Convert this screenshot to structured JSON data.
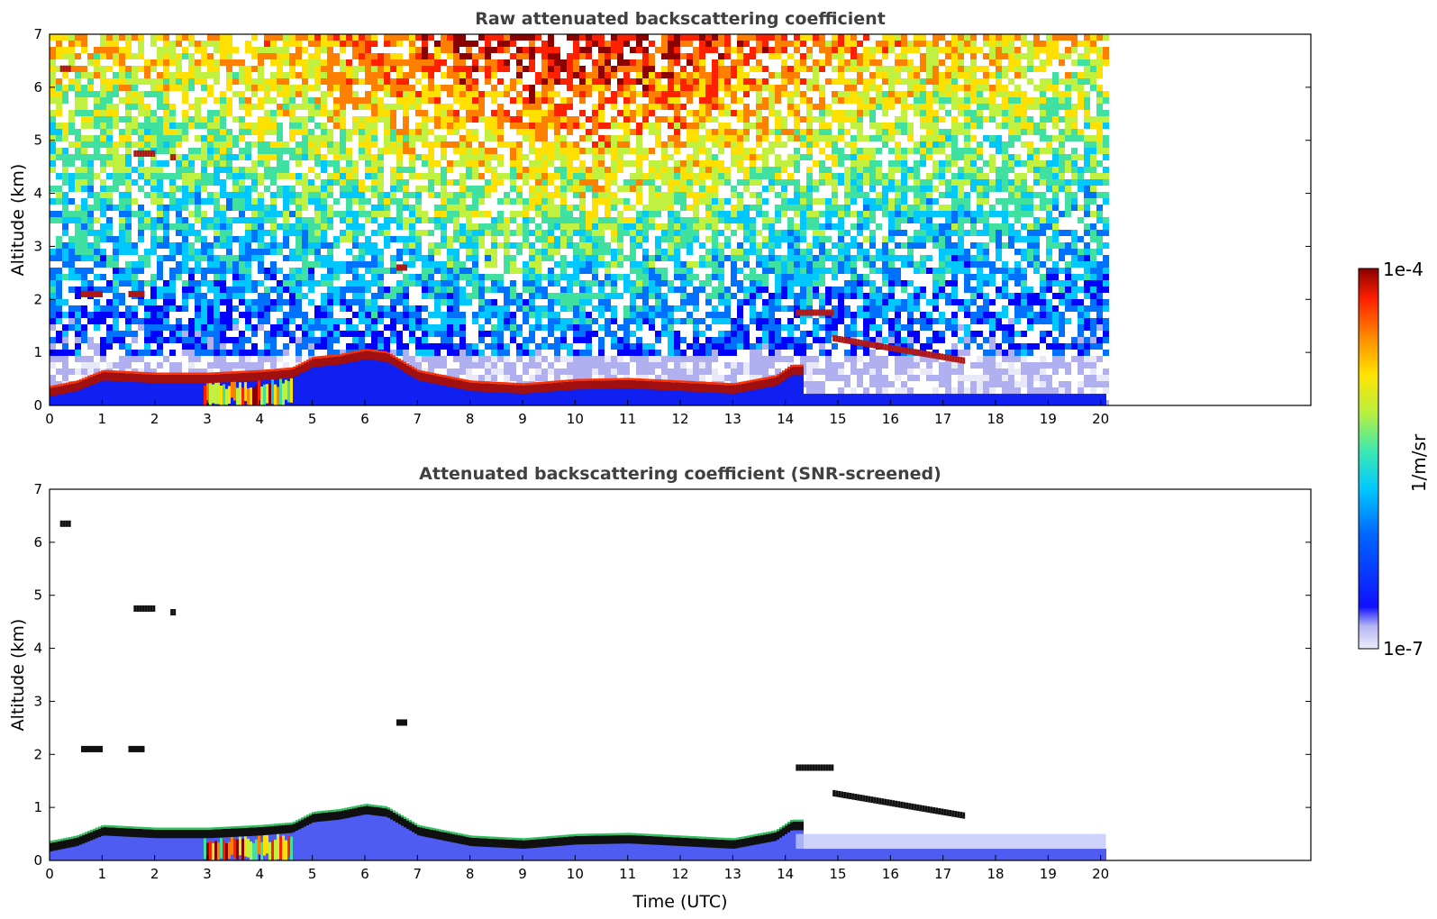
{
  "chart_data": [
    {
      "type": "heatmap",
      "title": "Raw attenuated backscattering coefficient",
      "xlabel": "",
      "ylabel": "Altitude (km)",
      "xlim": [
        0,
        24
      ],
      "ylim": [
        0,
        7
      ],
      "x_ticks": [
        "0",
        "1",
        "2",
        "3",
        "4",
        "5",
        "6",
        "7",
        "8",
        "9",
        "10",
        "11",
        "12",
        "13",
        "14",
        "15",
        "16",
        "17",
        "18",
        "19",
        "20"
      ],
      "y_ticks": [
        "0",
        "1",
        "2",
        "3",
        "4",
        "5",
        "6",
        "7"
      ],
      "data_end_time": 20.1,
      "layer_top_km": [
        [
          0,
          0.25
        ],
        [
          0.5,
          0.35
        ],
        [
          1,
          0.55
        ],
        [
          2,
          0.5
        ],
        [
          3,
          0.5
        ],
        [
          4,
          0.55
        ],
        [
          4.6,
          0.6
        ],
        [
          5,
          0.8
        ],
        [
          5.5,
          0.85
        ],
        [
          6,
          0.95
        ],
        [
          6.4,
          0.9
        ],
        [
          7,
          0.55
        ],
        [
          8,
          0.35
        ],
        [
          9,
          0.3
        ],
        [
          10,
          0.38
        ],
        [
          11,
          0.4
        ],
        [
          12,
          0.35
        ],
        [
          13,
          0.3
        ],
        [
          13.8,
          0.45
        ],
        [
          14.1,
          0.65
        ]
      ],
      "elevated_layers": [
        {
          "t0": 0.2,
          "t1": 0.4,
          "z": 6.35
        },
        {
          "t0": 1.6,
          "t1": 2.0,
          "z": 4.75
        },
        {
          "t0": 2.3,
          "t1": 2.4,
          "z": 4.68
        },
        {
          "t0": 6.6,
          "t1": 6.8,
          "z": 2.6
        },
        {
          "t0": 0.6,
          "t1": 1.0,
          "z": 2.1
        },
        {
          "t0": 1.5,
          "t1": 1.8,
          "z": 2.1
        },
        {
          "t0": 14.2,
          "t1": 14.9,
          "z": 1.75
        },
        {
          "t0": 14.9,
          "t1": 17.4,
          "z": 1.05
        }
      ]
    },
    {
      "type": "heatmap",
      "title": "Attenuated backscattering coefficient (SNR-screened)",
      "xlabel": "Time (UTC)",
      "ylabel": "Altitude (km)",
      "xlim": [
        0,
        24
      ],
      "ylim": [
        0,
        7
      ],
      "x_ticks": [
        "0",
        "1",
        "2",
        "3",
        "4",
        "5",
        "6",
        "7",
        "8",
        "9",
        "10",
        "11",
        "12",
        "13",
        "14",
        "15",
        "16",
        "17",
        "18",
        "19",
        "20"
      ],
      "y_ticks": [
        "0",
        "1",
        "2",
        "3",
        "4",
        "5",
        "6",
        "7"
      ],
      "data_end_time": 20.1
    }
  ],
  "colorbar": {
    "label": "1/m/sr",
    "max_label": "1e-4",
    "min_label": "1e-7",
    "colormap": [
      "#e8e8f8",
      "#b0b0f0",
      "#0000ff",
      "#0070ff",
      "#00c8ff",
      "#40e0a0",
      "#c0f040",
      "#ffe000",
      "#ff8000",
      "#ff2000",
      "#8b0000"
    ]
  }
}
